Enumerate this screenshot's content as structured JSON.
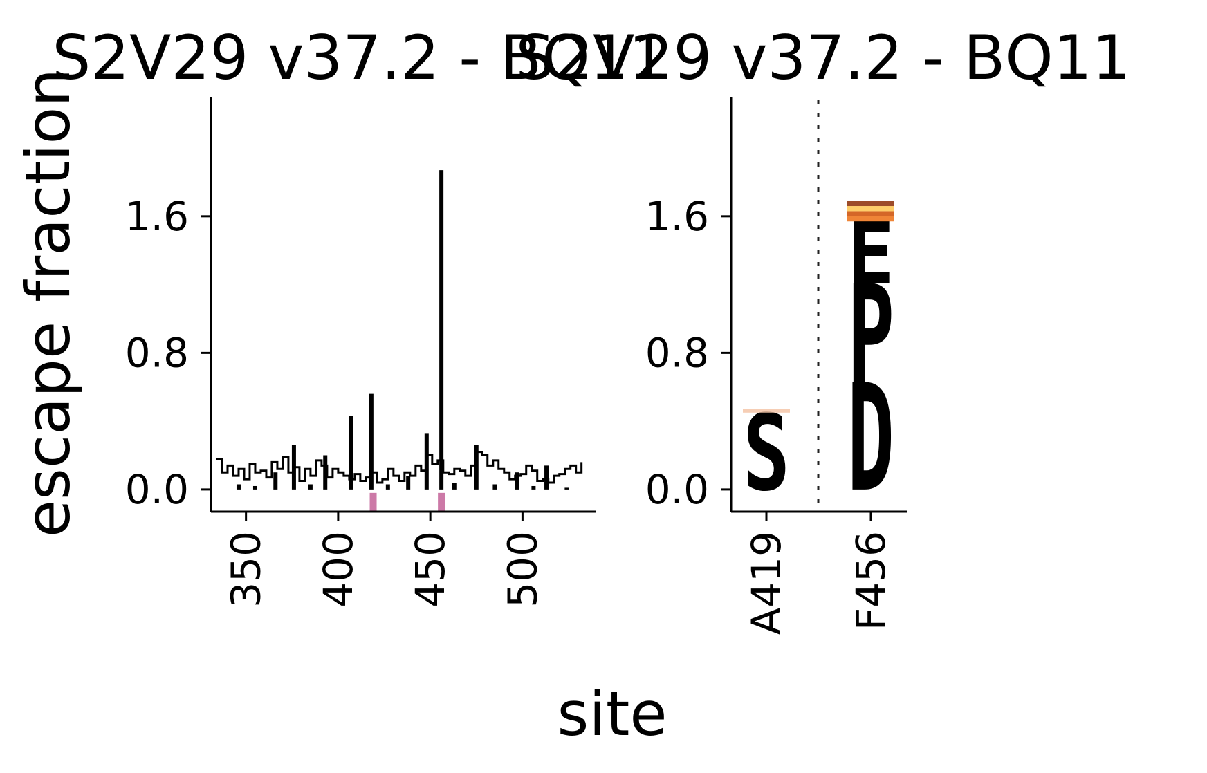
{
  "chart_data": [
    {
      "type": "line",
      "title": "S2V29 v37.2 - BQ11",
      "xlabel": "site",
      "ylabel": "escape fraction",
      "xlim": [
        331,
        540
      ],
      "ylim": [
        -0.13,
        2.3
      ],
      "yticks": [
        "0.0",
        "0.8",
        "1.6"
      ],
      "xticks": [
        "350",
        "400",
        "450",
        "500"
      ],
      "grid": false,
      "series": [
        {
          "style": "step",
          "color": "#000000",
          "x": [
            334,
            337,
            340,
            343,
            346,
            349,
            352,
            355,
            358,
            361,
            364,
            367,
            370,
            373,
            376,
            379,
            382,
            385,
            388,
            391,
            394,
            397,
            400,
            403,
            406,
            409,
            412,
            415,
            418,
            421,
            424,
            427,
            430,
            433,
            436,
            439,
            442,
            445,
            448,
            451,
            454,
            457,
            460,
            463,
            466,
            469,
            472,
            475,
            478,
            481,
            484,
            487,
            490,
            493,
            496,
            499,
            502,
            505,
            508,
            511,
            514,
            517,
            520,
            523,
            526,
            529,
            532
          ],
          "y": [
            0.18,
            0.1,
            0.14,
            0.08,
            0.12,
            0.06,
            0.15,
            0.1,
            0.11,
            0.07,
            0.16,
            0.12,
            0.19,
            0.1,
            0.13,
            0.05,
            0.12,
            0.08,
            0.17,
            0.14,
            0.07,
            0.12,
            0.1,
            0.08,
            0.06,
            0.09,
            0.05,
            0.07,
            0.1,
            0.04,
            0.06,
            0.12,
            0.08,
            0.05,
            0.1,
            0.08,
            0.14,
            0.11,
            0.2,
            0.15,
            0.17,
            0.1,
            0.09,
            0.12,
            0.11,
            0.08,
            0.14,
            0.22,
            0.2,
            0.14,
            0.17,
            0.12,
            0.1,
            0.06,
            0.08,
            0.09,
            0.14,
            0.11,
            0.05,
            0.06,
            0.04,
            0.08,
            0.09,
            0.12,
            0.14,
            0.1,
            0.16
          ]
        }
      ],
      "spikes": [
        {
          "site": 346,
          "value": 0.03
        },
        {
          "site": 355,
          "value": 0.02
        },
        {
          "site": 366,
          "value": 0.1
        },
        {
          "site": 376,
          "value": 0.26
        },
        {
          "site": 385,
          "value": 0.03
        },
        {
          "site": 393,
          "value": 0.2
        },
        {
          "site": 407,
          "value": 0.43
        },
        {
          "site": 418,
          "value": 0.56
        },
        {
          "site": 427,
          "value": 0.03
        },
        {
          "site": 438,
          "value": 0.08
        },
        {
          "site": 448,
          "value": 0.33
        },
        {
          "site": 456,
          "value": 1.87
        },
        {
          "site": 463,
          "value": 0.04
        },
        {
          "site": 475,
          "value": 0.26
        },
        {
          "site": 485,
          "value": 0.03
        },
        {
          "site": 497,
          "value": 0.1
        },
        {
          "site": 506,
          "value": 0.02
        },
        {
          "site": 513,
          "value": 0.14
        },
        {
          "site": 524,
          "value": 0.01
        }
      ],
      "highlighted_sites": [
        419,
        456
      ],
      "highlight_color": "#cc79a7"
    },
    {
      "type": "logo",
      "title": "S2V29 v37.2 - BQ11",
      "ylim": [
        -0.13,
        2.3
      ],
      "yticks": [
        "0.0",
        "0.8",
        "1.6"
      ],
      "categories": [
        "A419",
        "F456"
      ],
      "stacks": [
        {
          "site": "A419",
          "letters": [
            {
              "letter": "S",
              "value": 0.45,
              "color": "#993404"
            },
            {
              "letter": "",
              "value": 0.02,
              "color": "#f4c6a8"
            }
          ]
        },
        {
          "site": "F456",
          "letters": [
            {
              "letter": "D",
              "value": 0.63,
              "color": "#d95f0e"
            },
            {
              "letter": "P",
              "value": 0.58,
              "color": "#fee391"
            },
            {
              "letter": "E",
              "value": 0.36,
              "color": "#662506"
            },
            {
              "letter": "",
              "value": 0.03,
              "color": "#ec7014"
            },
            {
              "letter": "",
              "value": 0.03,
              "color": "#cc4c02"
            },
            {
              "letter": "",
              "value": 0.03,
              "color": "#fec44f"
            },
            {
              "letter": "",
              "value": 0.03,
              "color": "#8c2d04"
            }
          ]
        }
      ]
    }
  ]
}
